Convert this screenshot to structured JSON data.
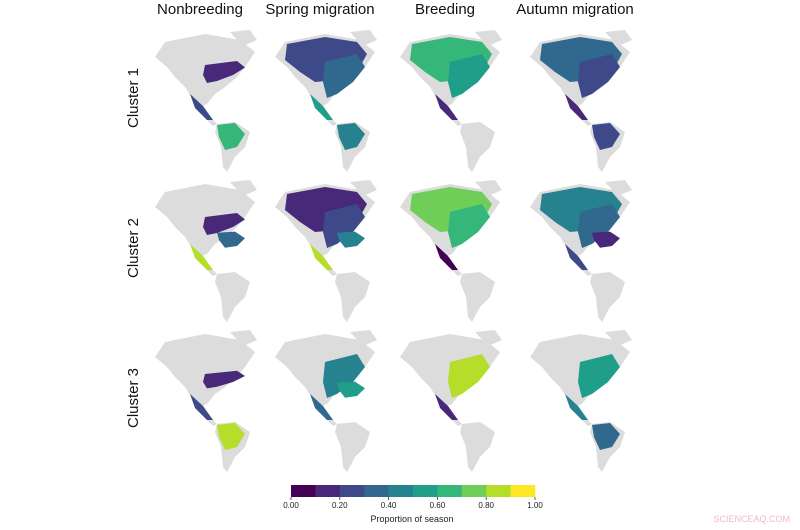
{
  "columns": [
    "Nonbreeding",
    "Spring migration",
    "Breeding",
    "Autumn migration"
  ],
  "rows": [
    "Cluster 1",
    "Cluster 2",
    "Cluster 3"
  ],
  "colorbar": {
    "colors": [
      "#440154",
      "#482878",
      "#3e4989",
      "#31688e",
      "#26828e",
      "#1f9e89",
      "#35b779",
      "#6ece58",
      "#b5de2b",
      "#fde725"
    ],
    "lim": [
      0,
      1
    ],
    "ticks": [
      {
        "value": 0,
        "label": "0.00"
      },
      {
        "value": 0.2,
        "label": "0.20"
      },
      {
        "value": 0.4,
        "label": "0.40"
      },
      {
        "value": 0.6,
        "label": "0.60"
      },
      {
        "value": 0.8,
        "label": "0.80"
      },
      {
        "value": 1,
        "label": "1.00"
      }
    ],
    "label": "Proportion of season"
  },
  "watermark": "SCIENCEAQ.COM"
}
